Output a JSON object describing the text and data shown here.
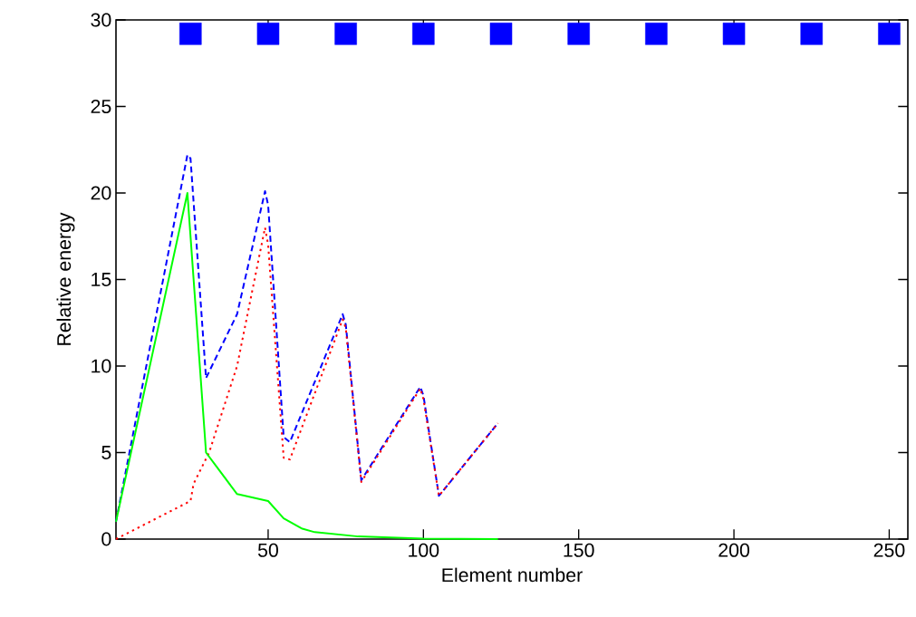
{
  "chart_data": {
    "type": "line",
    "xlabel": "Element number",
    "ylabel": "Relative energy",
    "xlim": [
      1,
      256
    ],
    "ylim": [
      0,
      30
    ],
    "xticks": [
      50,
      100,
      150,
      200,
      250
    ],
    "yticks": [
      0,
      5,
      10,
      15,
      20,
      25,
      30
    ],
    "grid": false,
    "series": [
      {
        "color": "#0000ff",
        "line_style": "dashed",
        "x": [
          1,
          24,
          25,
          30,
          40,
          49,
          50,
          55,
          57,
          74,
          75,
          80,
          99,
          100,
          105,
          124
        ],
        "values": [
          1,
          22.2,
          22,
          9.3,
          13,
          20.1,
          19.3,
          5.9,
          5.6,
          13,
          12.4,
          3.4,
          8.8,
          8.3,
          2.5,
          6.7
        ]
      },
      {
        "color": "#ff0000",
        "line_style": "dotted",
        "x": [
          1,
          25,
          26,
          31,
          40,
          49,
          50,
          55,
          57,
          74,
          75,
          80,
          99,
          100,
          105,
          124
        ],
        "values": [
          0,
          2.2,
          3.2,
          5,
          10,
          18,
          17,
          4.7,
          4.6,
          12.7,
          12.2,
          3.3,
          8.7,
          8.1,
          2.5,
          6.7
        ]
      },
      {
        "color": "#00ff00",
        "line_style": "solid",
        "x": [
          1,
          24,
          30,
          40,
          50,
          55,
          61,
          65,
          79,
          100,
          124
        ],
        "values": [
          1,
          20,
          5,
          2.6,
          2.2,
          1.2,
          0.6,
          0.4,
          0.15,
          0.03,
          0
        ]
      },
      {
        "type": "scatter",
        "marker": "square",
        "color": "#0000ff",
        "x": [
          25,
          75,
          125,
          175,
          225
        ],
        "values": [
          29.2,
          29.2,
          29.2,
          29.2,
          29.2
        ]
      },
      {
        "type": "scatter",
        "marker": "square",
        "color": "#0000ff",
        "x": [
          50,
          100,
          150,
          200,
          250
        ],
        "values": [
          29.2,
          29.2,
          29.2,
          29.2,
          29.2
        ]
      }
    ]
  }
}
